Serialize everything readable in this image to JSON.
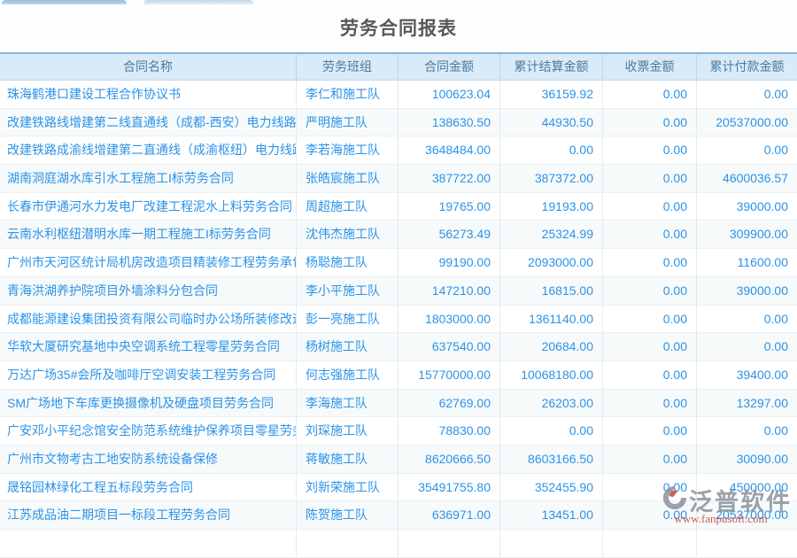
{
  "page": {
    "title": "劳务合同报表"
  },
  "colors": {
    "link_text": "#2b93e8",
    "header_bg": "#d9eaf8",
    "header_text": "#4d7b9e",
    "header_top_border": "#8ab4d8",
    "watermark_brand": "#858b95",
    "watermark_url": "#c0392b"
  },
  "table": {
    "columns": [
      "合同名称",
      "劳务班组",
      "合同金额",
      "累计结算金额",
      "收票金额",
      "累计付款金额"
    ],
    "rows": [
      [
        "珠海鹤港口建设工程合作协议书",
        "李仁和施工队",
        "100623.04",
        "36159.92",
        "0.00",
        "0.00"
      ],
      [
        "改建铁路线增建第二线直通线（成都-西安）电力线路迁",
        "严明施工队",
        "138630.50",
        "44930.50",
        "0.00",
        "20537000.00"
      ],
      [
        "改建铁路成渝线增建第二直通线（成渝枢纽）电力线路",
        "李若海施工队",
        "3648484.00",
        "0.00",
        "0.00",
        "0.00"
      ],
      [
        "湖南洞庭湖水库引水工程施工I标劳务合同",
        "张皓宸施工队",
        "387722.00",
        "387372.00",
        "0.00",
        "4600036.57"
      ],
      [
        "长春市伊通河水力发电厂改建工程泥水上料劳务合同",
        "周超施工队",
        "19765.00",
        "19193.00",
        "0.00",
        "39000.00"
      ],
      [
        "云南水利枢纽潜明水库一期工程施工I标劳务合同",
        "沈伟杰施工队",
        "56273.49",
        "25324.99",
        "0.00",
        "309900.00"
      ],
      [
        "广州市天河区统计局机房改造项目精装修工程劳务承包",
        "杨聪施工队",
        "99190.00",
        "2093000.00",
        "0.00",
        "11600.00"
      ],
      [
        "青海洪湖养护院项目外墙涂料分包合同",
        "李小平施工队",
        "147210.00",
        "16815.00",
        "0.00",
        "39000.00"
      ],
      [
        "成都能源建设集团投资有限公司临时办公场所装修改造",
        "彭一亮施工队",
        "1803000.00",
        "1361140.00",
        "0.00",
        "0.00"
      ],
      [
        "华软大厦研究基地中央空调系统工程零星劳务合同",
        "杨树施工队",
        "637540.00",
        "20684.00",
        "0.00",
        "0.00"
      ],
      [
        "万达广场35#会所及咖啡厅空调安装工程劳务合同",
        "何志强施工队",
        "15770000.00",
        "10068180.00",
        "0.00",
        "39400.00"
      ],
      [
        "SM广场地下车库更换摄像机及硬盘项目劳务合同",
        "李海施工队",
        "62769.00",
        "26203.00",
        "0.00",
        "13297.00"
      ],
      [
        "广安邓小平纪念馆安全防范系统维护保养项目零星劳务",
        "刘琛施工队",
        "78830.00",
        "0.00",
        "0.00",
        "0.00"
      ],
      [
        "广州市文物考古工地安防系统设备保修",
        "蒋敏施工队",
        "8620666.50",
        "8603166.50",
        "0.00",
        "30090.00"
      ],
      [
        "晟铭园林绿化工程五标段劳务合同",
        "刘新荣施工队",
        "35491755.80",
        "352455.90",
        "0.00",
        "450000.00"
      ],
      [
        "江苏成品油二期项目一标段工程劳务合同",
        "陈贺施工队",
        "636971.00",
        "13451.00",
        "0.00",
        "20537000.00"
      ]
    ]
  },
  "watermark": {
    "brand": "泛普软件",
    "url": "www.fanpusoft.com"
  }
}
